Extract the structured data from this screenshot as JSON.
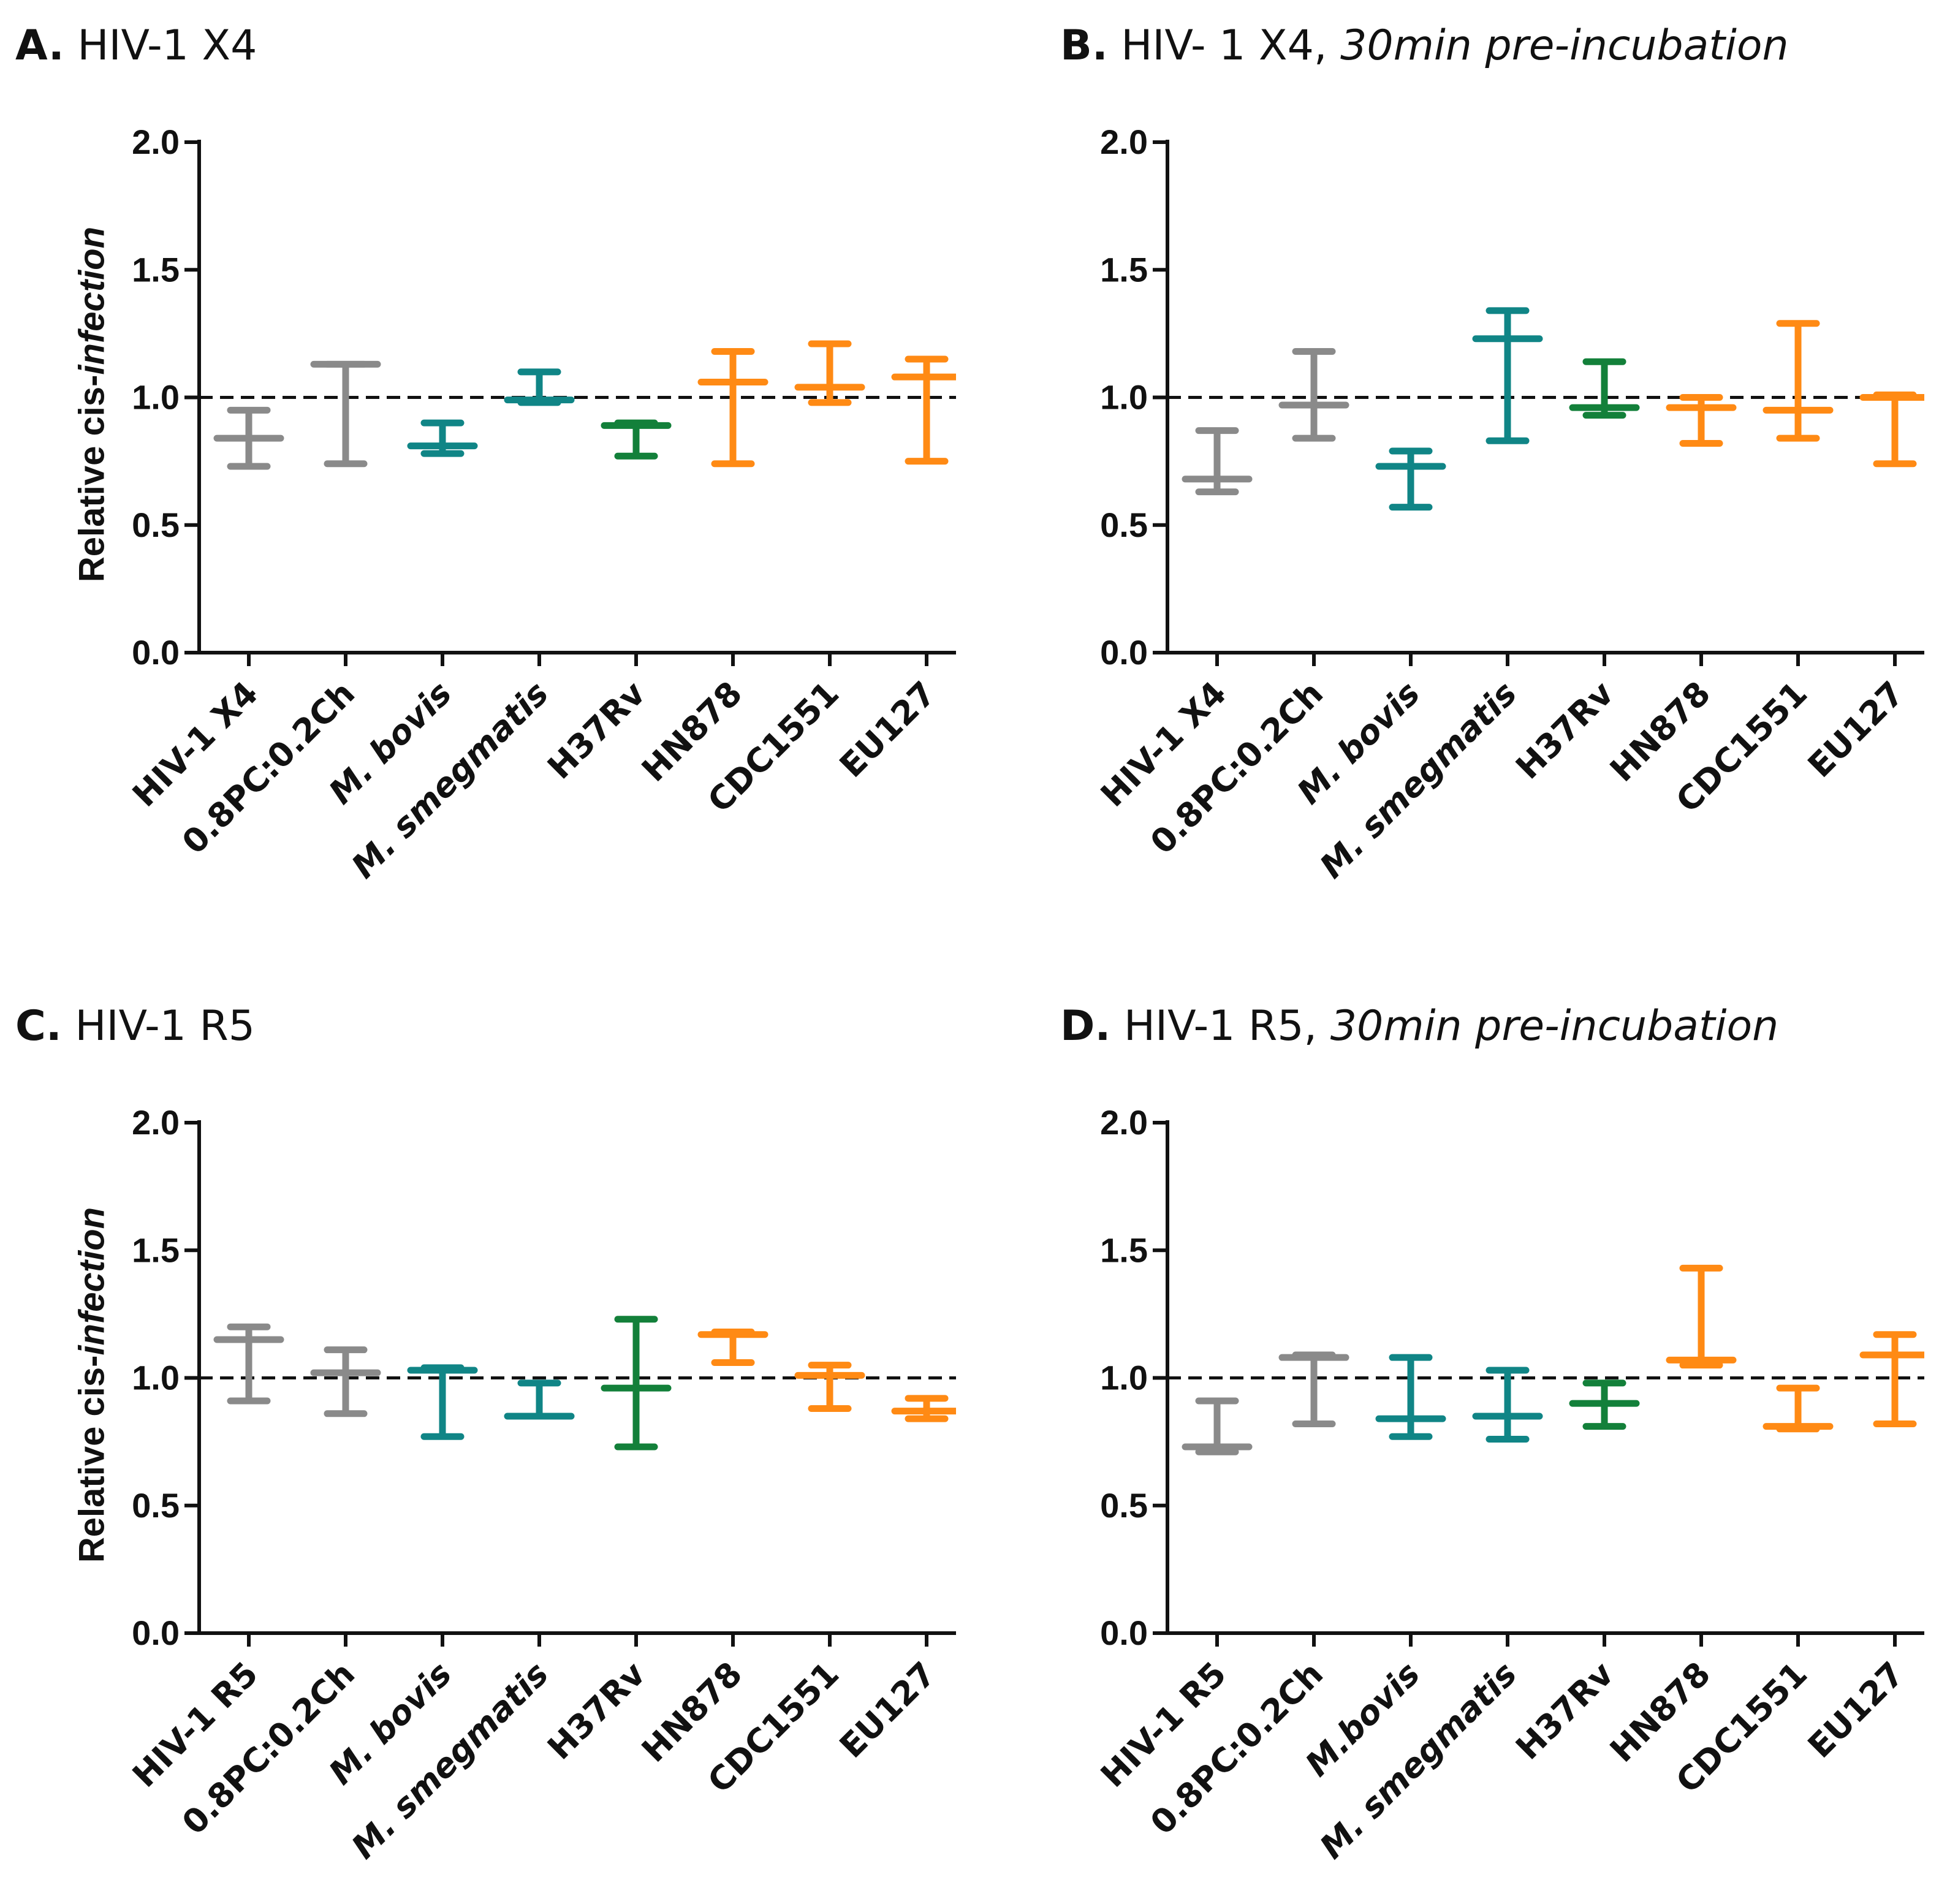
{
  "colors": {
    "gray": "#8a8a8a",
    "teal": "#108586",
    "green": "#13803a",
    "orange": "#ff8a14",
    "axis": "#111111"
  },
  "chart_data": [
    {
      "id": "A",
      "type": "floating-bar",
      "panel_label": "A.",
      "title": "HIV-1 X4",
      "subtitle": "",
      "ylabel_regular": "Relative cis-",
      "ylabel_italic": "infection",
      "ylabel_italic_prefix": "Relative",
      "ylim": [
        0,
        2.0
      ],
      "yticks": [
        "0.0",
        "0.5",
        "1.0",
        "1.5",
        "2.0"
      ],
      "reference_line": 1.0,
      "categories": [
        "HIV-1 X4",
        "0.8PC:0.2Ch",
        "M. bovis",
        "M. smegmatis",
        "H37Rv",
        "HN878",
        "CDC1551",
        "EU127"
      ],
      "category_italic_part": [
        "",
        "",
        "M. bovis",
        "M. smegmatis",
        "",
        "",
        "",
        ""
      ],
      "colors": [
        "gray",
        "gray",
        "teal",
        "teal",
        "green",
        "orange",
        "orange",
        "orange"
      ],
      "min": [
        0.73,
        0.74,
        0.78,
        0.98,
        0.77,
        0.74,
        0.98,
        0.75
      ],
      "max": [
        0.95,
        1.13,
        0.9,
        1.1,
        0.9,
        1.18,
        1.21,
        1.15
      ],
      "mean": [
        0.84,
        1.13,
        0.81,
        0.99,
        0.89,
        1.06,
        1.04,
        1.08
      ]
    },
    {
      "id": "B",
      "type": "floating-bar",
      "panel_label": "B.",
      "title": "HIV- 1 X4,",
      "subtitle": "30min pre-incubation",
      "ylim": [
        0,
        2.0
      ],
      "yticks": [
        "0.0",
        "0.5",
        "1.0",
        "1.5",
        "2.0"
      ],
      "reference_line": 1.0,
      "categories": [
        "HIV-1 X4",
        "0.8PC:0.2Ch",
        "M. bovis",
        "M. smegmatis",
        "H37Rv",
        "HN878",
        "CDC1551",
        "EU127"
      ],
      "category_italic_part": [
        "",
        "",
        "M. bovis",
        "M. smegmatis",
        "",
        "",
        "",
        ""
      ],
      "colors": [
        "gray",
        "gray",
        "teal",
        "teal",
        "green",
        "orange",
        "orange",
        "orange"
      ],
      "min": [
        0.63,
        0.84,
        0.57,
        0.83,
        0.93,
        0.82,
        0.84,
        0.74
      ],
      "max": [
        0.87,
        1.18,
        0.79,
        1.34,
        1.14,
        1.0,
        1.29,
        1.01
      ],
      "mean": [
        0.68,
        0.97,
        0.73,
        1.23,
        0.96,
        0.96,
        0.95,
        1.0
      ]
    },
    {
      "id": "C",
      "type": "floating-bar",
      "panel_label": "C.",
      "title": "HIV-1 R5",
      "subtitle": "",
      "ylabel_regular": "Relative cis-",
      "ylabel_italic": "infection",
      "ylabel_italic_prefix": "Relative",
      "ylim": [
        0,
        2.0
      ],
      "yticks": [
        "0.0",
        "0.5",
        "1.0",
        "1.5",
        "2.0"
      ],
      "reference_line": 1.0,
      "categories": [
        "HIV-1 R5",
        "0.8PC:0.2Ch",
        "M. bovis",
        "M. smegmatis",
        "H37Rv",
        "HN878",
        "CDC1551",
        "EU127"
      ],
      "category_italic_part": [
        "",
        "",
        "M. bovis",
        "M. smegmatis",
        "",
        "",
        "",
        ""
      ],
      "colors": [
        "gray",
        "gray",
        "teal",
        "teal",
        "green",
        "orange",
        "orange",
        "orange"
      ],
      "min": [
        0.91,
        0.86,
        0.77,
        0.85,
        0.73,
        1.06,
        0.88,
        0.84
      ],
      "max": [
        1.2,
        1.11,
        1.04,
        0.98,
        1.23,
        1.18,
        1.05,
        0.92
      ],
      "mean": [
        1.15,
        1.02,
        1.03,
        0.85,
        0.96,
        1.17,
        1.01,
        0.87
      ]
    },
    {
      "id": "D",
      "type": "floating-bar",
      "panel_label": "D.",
      "title": "HIV-1 R5,",
      "subtitle": "30min pre-incubation",
      "ylim": [
        0,
        2.0
      ],
      "yticks": [
        "0.0",
        "0.5",
        "1.0",
        "1.5",
        "2.0"
      ],
      "reference_line": 1.0,
      "categories": [
        "HIV-1 R5",
        "0.8PC:0.2Ch",
        "M.bovis",
        "M. smegmatis",
        "H37Rv",
        "HN878",
        "CDC1551",
        "EU127"
      ],
      "category_italic_part": [
        "",
        "",
        "M.bovis",
        "M. smegmatis",
        "",
        "",
        "",
        ""
      ],
      "colors": [
        "gray",
        "gray",
        "teal",
        "teal",
        "green",
        "orange",
        "orange",
        "orange"
      ],
      "min": [
        0.71,
        0.82,
        0.77,
        0.76,
        0.81,
        1.05,
        0.8,
        0.82
      ],
      "max": [
        0.91,
        1.09,
        1.08,
        1.03,
        0.98,
        1.43,
        0.96,
        1.17
      ],
      "mean": [
        0.73,
        1.08,
        0.84,
        0.85,
        0.9,
        1.07,
        0.81,
        1.09
      ]
    }
  ]
}
